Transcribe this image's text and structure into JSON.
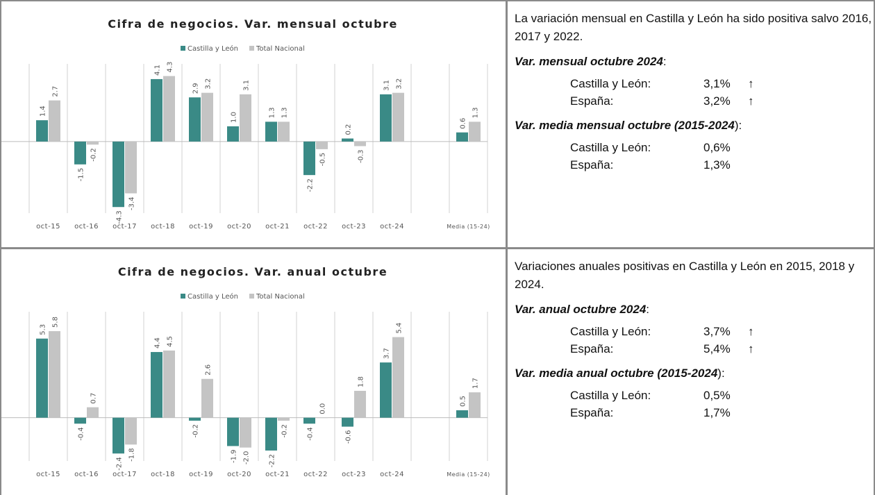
{
  "chart_data": [
    {
      "type": "bar",
      "title": "Cifra de negocios. Var. mensual octubre",
      "categories": [
        "oct-15",
        "oct-16",
        "oct-17",
        "oct-18",
        "oct-19",
        "oct-20",
        "oct-21",
        "oct-22",
        "oct-23",
        "oct-24",
        null,
        "Media (15-24)"
      ],
      "series": [
        {
          "name": "Castilla y León",
          "color": "#3a8a86",
          "values": [
            1.4,
            -1.5,
            -4.3,
            4.1,
            2.9,
            1.0,
            1.3,
            -2.2,
            0.2,
            3.1,
            null,
            0.6
          ],
          "value_labels": [
            "1.4",
            "-1.5",
            "-4.3",
            "4.1",
            "2.9",
            "1.0",
            "1.3",
            "-2.2",
            "0.2",
            "3.1",
            null,
            "0.6"
          ]
        },
        {
          "name": "Total Nacional",
          "color": "#c4c4c4",
          "values": [
            2.7,
            -0.2,
            -3.4,
            4.3,
            3.2,
            3.1,
            1.3,
            -0.5,
            -0.3,
            3.2,
            null,
            1.3
          ],
          "value_labels": [
            "2.7",
            "-0.2",
            "-3.4",
            "4.3",
            "3.2",
            "3.1",
            "1.3",
            "-0.5",
            "-0.3",
            "3.2",
            null,
            "1.3"
          ]
        }
      ],
      "ylim": [
        -4.7,
        5.1
      ],
      "legend": "top"
    },
    {
      "type": "bar",
      "title": "Cifra de negocios. Var. anual octubre",
      "categories": [
        "oct-15",
        "oct-16",
        "oct-17",
        "oct-18",
        "oct-19",
        "oct-20",
        "oct-21",
        "oct-22",
        "oct-23",
        "oct-24",
        null,
        "Media (15-24)"
      ],
      "series": [
        {
          "name": "Castilla y León",
          "color": "#3a8a86",
          "values": [
            5.3,
            -0.4,
            -2.4,
            4.4,
            -0.2,
            -1.9,
            -2.2,
            -0.4,
            -0.6,
            3.7,
            null,
            0.5
          ],
          "value_labels": [
            "5.3",
            "-0.4",
            "-2.4",
            "4.4",
            "-0.2",
            "-1.9",
            "-2.2",
            "-0.4",
            "-0.6",
            "3.7",
            null,
            "0.5"
          ]
        },
        {
          "name": "Total Nacional",
          "color": "#c4c4c4",
          "values": [
            5.8,
            0.7,
            -1.8,
            4.5,
            2.6,
            -2.0,
            -0.2,
            0.0,
            1.8,
            5.4,
            null,
            1.7
          ],
          "value_labels": [
            "5.8",
            "0.7",
            "-1.8",
            "4.5",
            "2.6",
            "-2.0",
            "-0.2",
            "0.0",
            "1.8",
            "5.4",
            null,
            "1.7"
          ]
        }
      ],
      "ylim": [
        -2.9,
        7.1
      ],
      "legend": "top"
    }
  ],
  "panels": [
    {
      "intro": "La variación mensual en Castilla y León ha sido positiva salvo 2016, 2017 y 2022.",
      "sections": [
        {
          "heading": "Var. mensual octubre 2024",
          "suffix": ":",
          "rows": [
            {
              "label": "Castilla y León:",
              "value": "3,1%",
              "trend": "↑"
            },
            {
              "label": "España:",
              "value": "3,2%",
              "trend": "↑"
            }
          ]
        },
        {
          "heading": "Var. media mensual octubre (2015-2024",
          "suffix": "):",
          "rows": [
            {
              "label": "Castilla y León:",
              "value": "0,6%"
            },
            {
              "label": "España:",
              "value": "1,3%"
            }
          ]
        }
      ]
    },
    {
      "intro": "Variaciones anuales positivas en Castilla y León en 2015, 2018 y 2024.",
      "sections": [
        {
          "heading": "Var. anual octubre 2024",
          "suffix": ":",
          "rows": [
            {
              "label": "Castilla y León:",
              "value": "3,7%",
              "trend": "↑"
            },
            {
              "label": "España:",
              "value": "5,4%",
              "trend": "↑"
            }
          ]
        },
        {
          "heading": "Var. media anual octubre (2015-2024",
          "suffix": "):",
          "rows": [
            {
              "label": "Castilla y León:",
              "value": "0,5%"
            },
            {
              "label": "España:",
              "value": "1,7%"
            }
          ]
        }
      ]
    }
  ]
}
